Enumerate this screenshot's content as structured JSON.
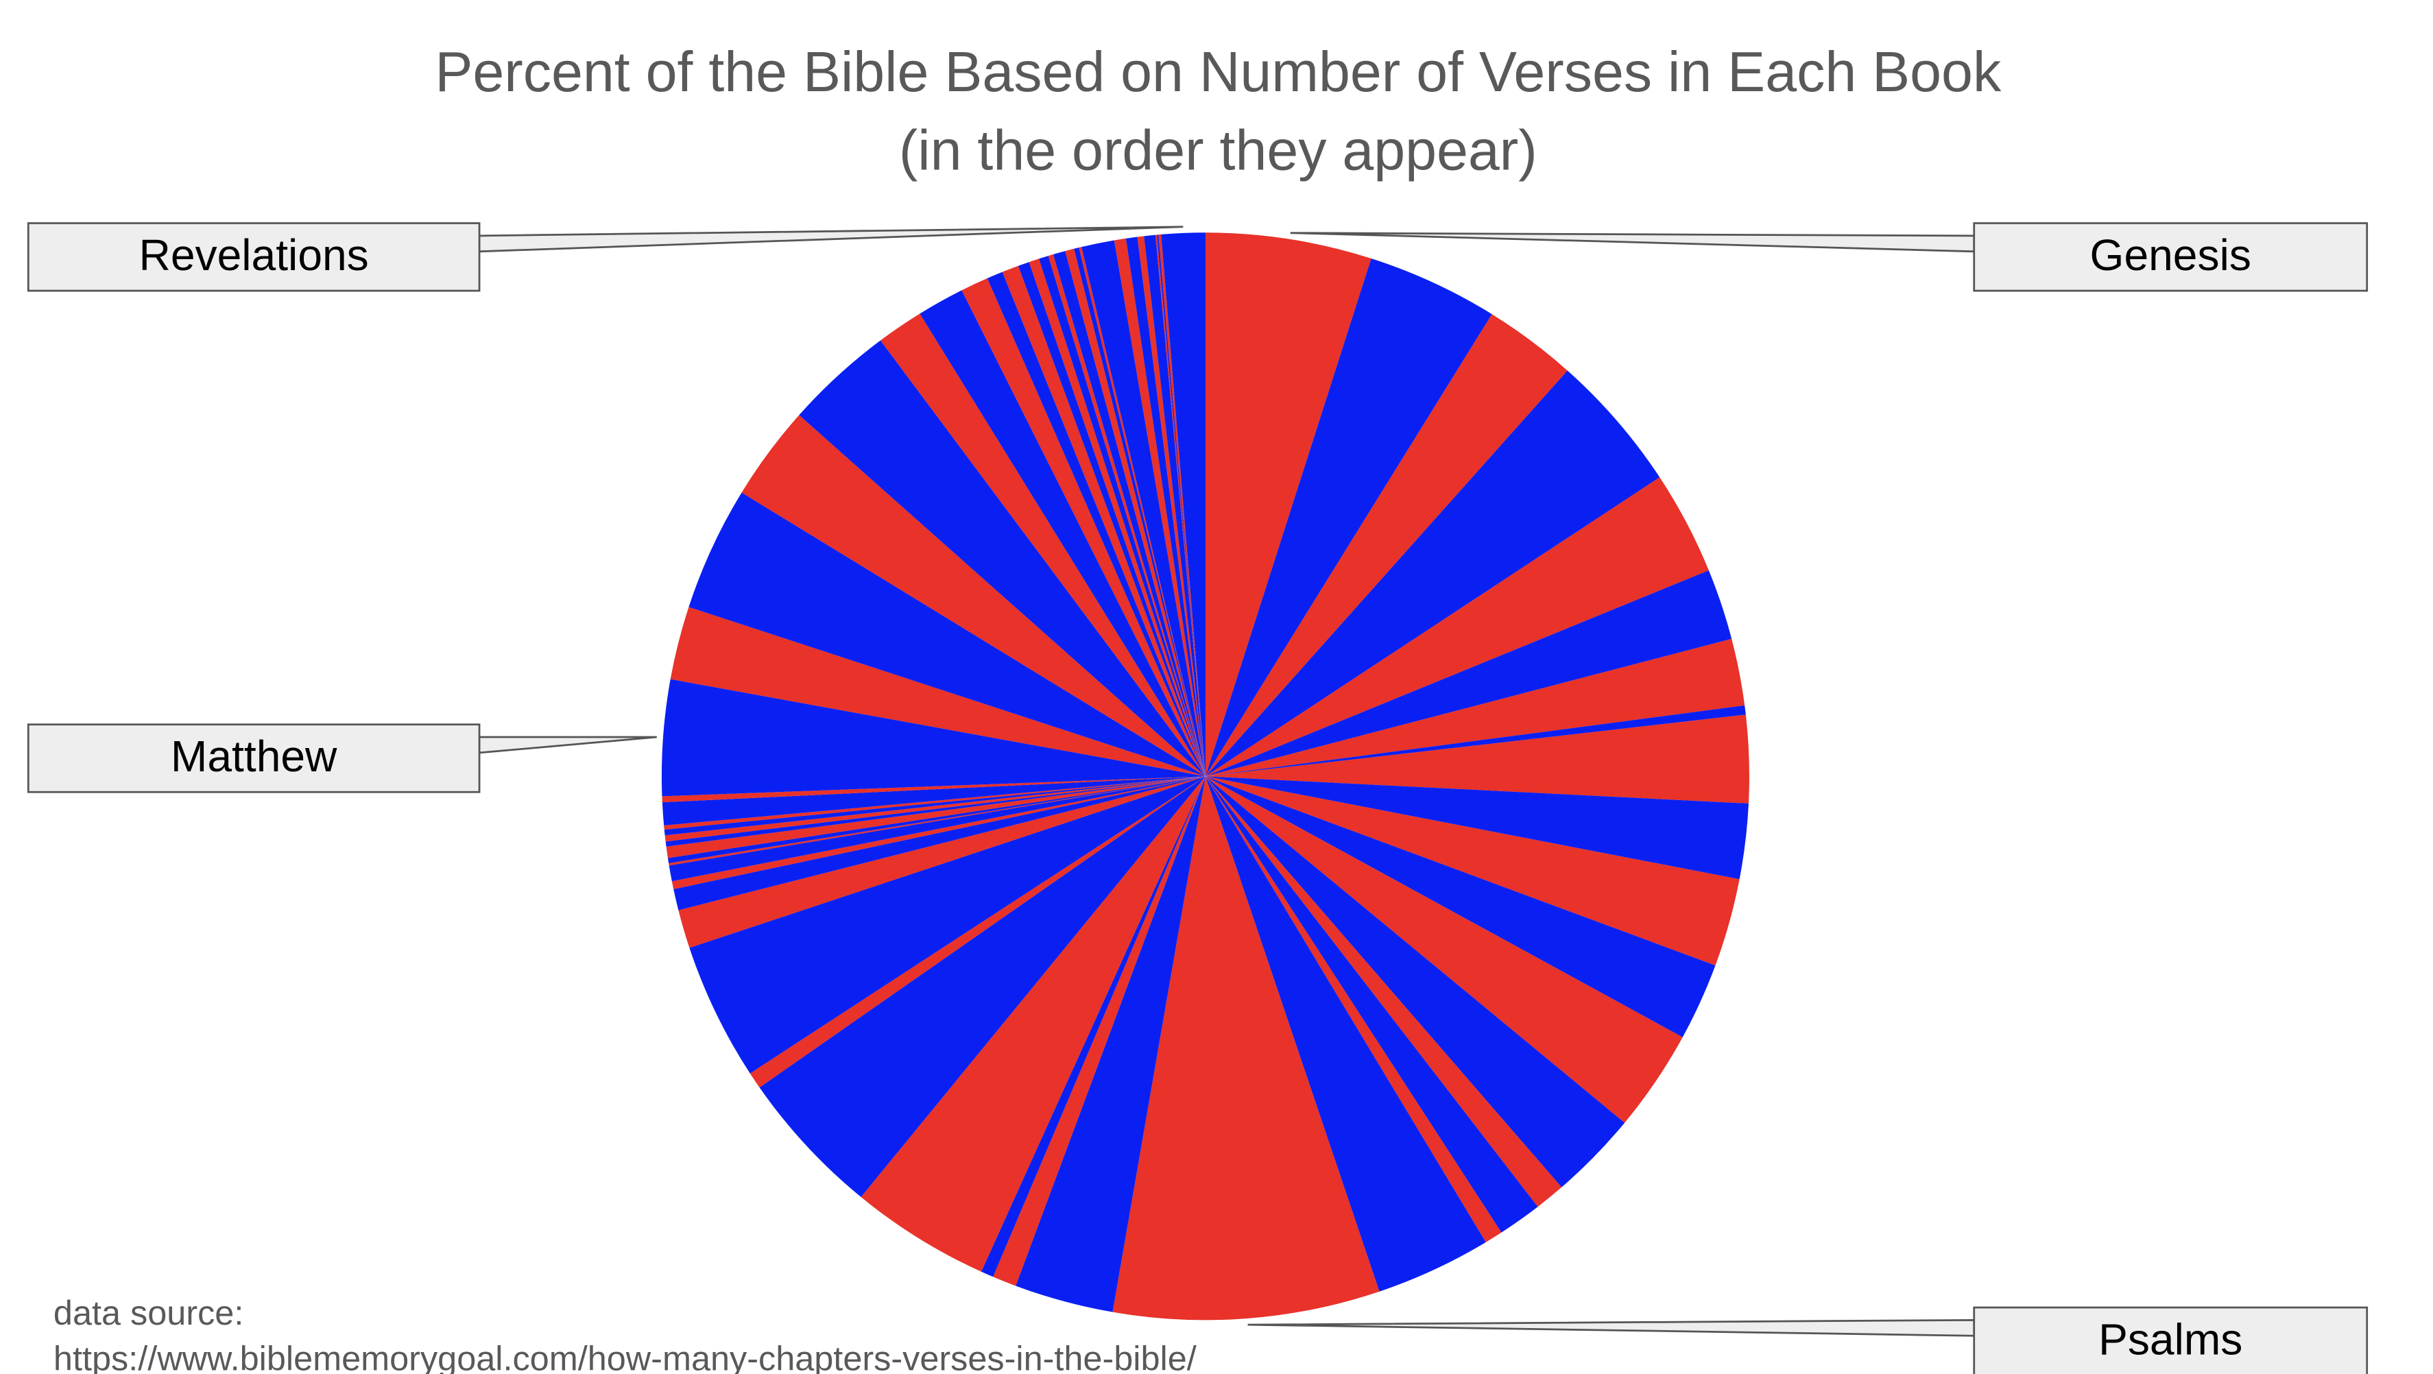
{
  "chart_data": {
    "type": "pie",
    "title": "Percent of the Bible Based on Number of Verses in Each Book",
    "subtitle": "(in the order they appear)",
    "source_label": "data source:",
    "source_url": "https://www.biblememorygoal.com/how-many-chapters-verses-in-the-bible/",
    "categories": [
      "Genesis",
      null,
      null,
      null,
      null,
      null,
      null,
      null,
      null,
      null,
      null,
      null,
      null,
      null,
      null,
      null,
      null,
      null,
      "Psalms",
      null,
      null,
      null,
      null,
      null,
      null,
      null,
      null,
      null,
      null,
      null,
      null,
      null,
      null,
      null,
      null,
      null,
      null,
      null,
      null,
      "Matthew",
      null,
      null,
      null,
      null,
      null,
      null,
      null,
      null,
      null,
      null,
      null,
      null,
      null,
      null,
      null,
      null,
      null,
      null,
      null,
      null,
      null,
      null,
      null,
      null,
      null,
      "Revelations"
    ],
    "values": [
      1533,
      1213,
      859,
      1288,
      959,
      658,
      618,
      85,
      810,
      695,
      816,
      719,
      942,
      822,
      280,
      406,
      167,
      1070,
      2461,
      915,
      222,
      117,
      1292,
      1364,
      154,
      1273,
      357,
      197,
      73,
      146,
      21,
      48,
      105,
      47,
      56,
      53,
      38,
      211,
      55,
      1071,
      678,
      1151,
      879,
      1007,
      433,
      437,
      257,
      149,
      155,
      104,
      95,
      89,
      47,
      113,
      83,
      46,
      25,
      303,
      108,
      105,
      61,
      105,
      13,
      14,
      25,
      404
    ],
    "colors": [
      "#e8322a",
      "#0a20f2"
    ],
    "start_angle": 0,
    "direction": "clockwise"
  }
}
